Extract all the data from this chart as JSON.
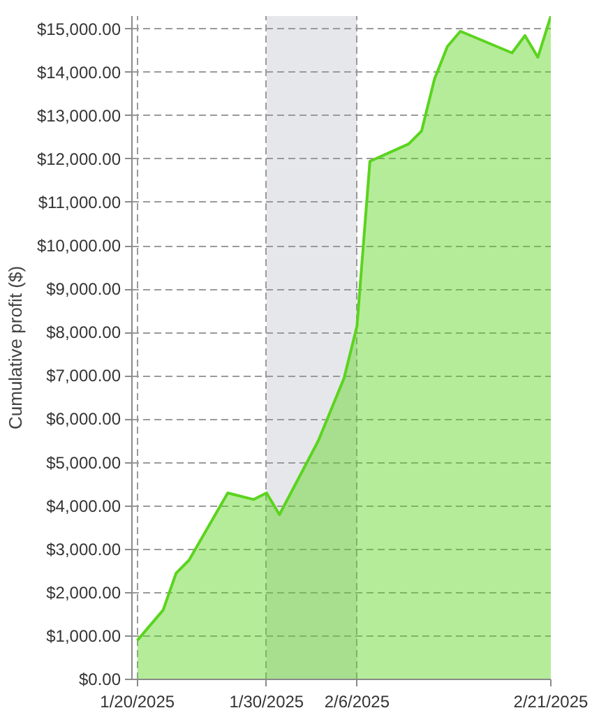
{
  "chart_data": {
    "type": "area",
    "ylabel": "Cumulative profit ($)",
    "x": [
      "2025-01-20",
      "2025-01-22",
      "2025-01-23",
      "2025-01-24",
      "2025-01-27",
      "2025-01-29",
      "2025-01-30",
      "2025-01-31",
      "2025-02-03",
      "2025-02-05",
      "2025-02-06",
      "2025-02-07",
      "2025-02-10",
      "2025-02-11",
      "2025-02-12",
      "2025-02-13",
      "2025-02-14",
      "2025-02-18",
      "2025-02-19",
      "2025-02-20",
      "2025-02-21"
    ],
    "series": [
      {
        "color": "#5bd41f",
        "values": [
          900,
          1600,
          2450,
          2750,
          4300,
          4150,
          4300,
          3800,
          5500,
          6950,
          8150,
          11950,
          12350,
          12650,
          13850,
          14600,
          14950,
          14450,
          14850,
          14350,
          15300
        ]
      }
    ],
    "xlim": [
      "2025-01-19T14:00",
      "2025-02-21T00:00"
    ],
    "ylim": [
      0,
      15300
    ],
    "xticks": [
      {
        "value": "2025-01-20",
        "label": "1/20/2025"
      },
      {
        "value": "2025-01-30",
        "label": "1/30/2025"
      },
      {
        "value": "2025-02-06",
        "label": "2/6/2025"
      },
      {
        "value": "2025-02-21",
        "label": "2/21/2025"
      }
    ],
    "yticks": [
      {
        "value": 0,
        "label": "$0.00"
      },
      {
        "value": 1000,
        "label": "$1,000.00"
      },
      {
        "value": 2000,
        "label": "$2,000.00"
      },
      {
        "value": 3000,
        "label": "$3,000.00"
      },
      {
        "value": 4000,
        "label": "$4,000.00"
      },
      {
        "value": 5000,
        "label": "$5,000.00"
      },
      {
        "value": 6000,
        "label": "$6,000.00"
      },
      {
        "value": 7000,
        "label": "$7,000.00"
      },
      {
        "value": 8000,
        "label": "$8,000.00"
      },
      {
        "value": 9000,
        "label": "$9,000.00"
      },
      {
        "value": 10000,
        "label": "$10,000.00"
      },
      {
        "value": 11000,
        "label": "$11,000.00"
      },
      {
        "value": 12000,
        "label": "$12,000.00"
      },
      {
        "value": 13000,
        "label": "$13,000.00"
      },
      {
        "value": 14000,
        "label": "$14,000.00"
      },
      {
        "value": 15000,
        "label": "$15,000.00"
      }
    ],
    "bands": [
      {
        "axis": "x",
        "from": "2025-01-30",
        "to": "2025-02-06",
        "color": "#e6e7ea"
      }
    ],
    "grid": true
  }
}
